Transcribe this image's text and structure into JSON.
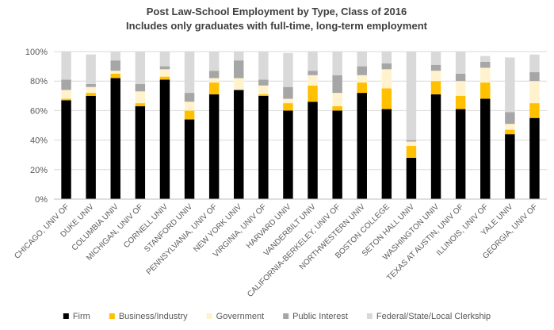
{
  "chart_data": {
    "type": "stacked-bar",
    "title": "Post Law-School Employment by Type, Class of 2016",
    "subtitle": "Includes only graduates with full-time, long-term employment",
    "ylim": [
      0,
      100
    ],
    "yticks": [
      "0%",
      "20%",
      "40%",
      "60%",
      "80%",
      "100%"
    ],
    "categories": [
      "CHICAGO, UNIV OF",
      "DUKE UNIV",
      "COLUMBIA UNIV",
      "MICHIGAN, UNIV OF",
      "CORNELL UNIV",
      "STANFORD UNIV",
      "PENNSYLVANIA, UNIV OF",
      "NEW YORK UNIV",
      "VIRGINIA, UNIV OF",
      "HARVARD UNIV",
      "VANDERBILT UNIV",
      "CALIFORNIA-BERKELEY, UNIV OF",
      "NORTHWESTERN UNIV",
      "BOSTON COLLEGE",
      "SETON HALL UNIV",
      "WASHINGTON UNIV",
      "TEXAS AT AUSTIN, UNIV OF",
      "ILLINOIS, UNIV OF",
      "YALE UNIV",
      "GEORGIA, UNIV OF"
    ],
    "series": [
      {
        "name": "Firm",
        "color": "#000000",
        "values": [
          67,
          70,
          82,
          63,
          81,
          54,
          71,
          74,
          70,
          60,
          66,
          60,
          72,
          61,
          28,
          71,
          61,
          68,
          44,
          55
        ]
      },
      {
        "name": "Business/Industry",
        "color": "#ffc000",
        "values": [
          1,
          2,
          3,
          2,
          2,
          6,
          8,
          0,
          1,
          5,
          11,
          3,
          7,
          14,
          8,
          9,
          9,
          11,
          3,
          10
        ]
      },
      {
        "name": "Government",
        "color": "#fff2cc",
        "values": [
          6,
          4,
          2,
          8,
          5,
          6,
          3,
          8,
          6,
          3,
          7,
          9,
          5,
          13,
          3,
          7,
          10,
          10,
          4,
          15
        ]
      },
      {
        "name": "Public Interest",
        "color": "#a6a6a6",
        "values": [
          7,
          2,
          7,
          5,
          2,
          6,
          5,
          12,
          4,
          8,
          3,
          12,
          6,
          4,
          1,
          4,
          5,
          4,
          8,
          6
        ]
      },
      {
        "name": "Federal/State/Local Clerkship",
        "color": "#d9d9d9",
        "values": [
          19,
          20,
          6,
          22,
          10,
          28,
          13,
          6,
          19,
          23,
          13,
          16,
          10,
          8,
          60,
          9,
          15,
          4,
          37,
          12
        ]
      }
    ]
  }
}
